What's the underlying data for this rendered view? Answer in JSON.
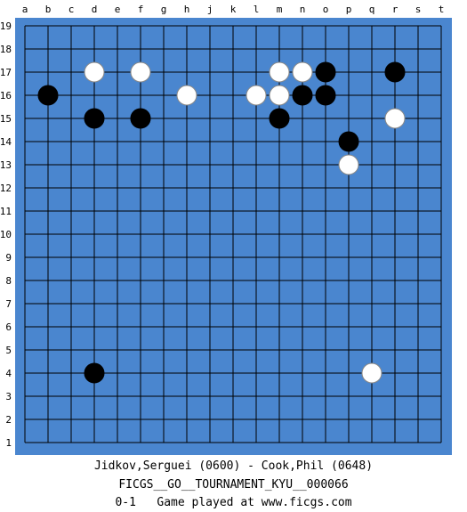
{
  "board": {
    "size": 19,
    "board_color": "#4a86cf",
    "line_color": "#000000",
    "columns": [
      "a",
      "b",
      "c",
      "d",
      "e",
      "f",
      "g",
      "h",
      "j",
      "k",
      "l",
      "m",
      "n",
      "o",
      "p",
      "q",
      "r",
      "s",
      "t"
    ],
    "rows": [
      "19",
      "18",
      "17",
      "16",
      "15",
      "14",
      "13",
      "12",
      "11",
      "10",
      "9",
      "8",
      "7",
      "6",
      "5",
      "4",
      "3",
      "2",
      "1"
    ],
    "stones": [
      {
        "color": "black",
        "point": "b16"
      },
      {
        "color": "white",
        "point": "d17"
      },
      {
        "color": "white",
        "point": "f17"
      },
      {
        "color": "black",
        "point": "d15"
      },
      {
        "color": "black",
        "point": "f15"
      },
      {
        "color": "white",
        "point": "h16"
      },
      {
        "color": "white",
        "point": "l16"
      },
      {
        "color": "white",
        "point": "m17"
      },
      {
        "color": "white",
        "point": "m16"
      },
      {
        "color": "white",
        "point": "n17"
      },
      {
        "color": "black",
        "point": "n16"
      },
      {
        "color": "black",
        "point": "o17"
      },
      {
        "color": "black",
        "point": "o16"
      },
      {
        "color": "black",
        "point": "m15"
      },
      {
        "color": "black",
        "point": "r17"
      },
      {
        "color": "white",
        "point": "r15"
      },
      {
        "color": "black",
        "point": "p14"
      },
      {
        "color": "white",
        "point": "p13"
      },
      {
        "color": "black",
        "point": "d4"
      },
      {
        "color": "white",
        "point": "q4"
      }
    ]
  },
  "footer": {
    "players": "Jidkov,Serguei (0600) - Cook,Phil (0648)",
    "event": "FICGS__GO__TOURNAMENT_KYU__000066",
    "result_line": "0-1   Game played at www.ficgs.com"
  }
}
